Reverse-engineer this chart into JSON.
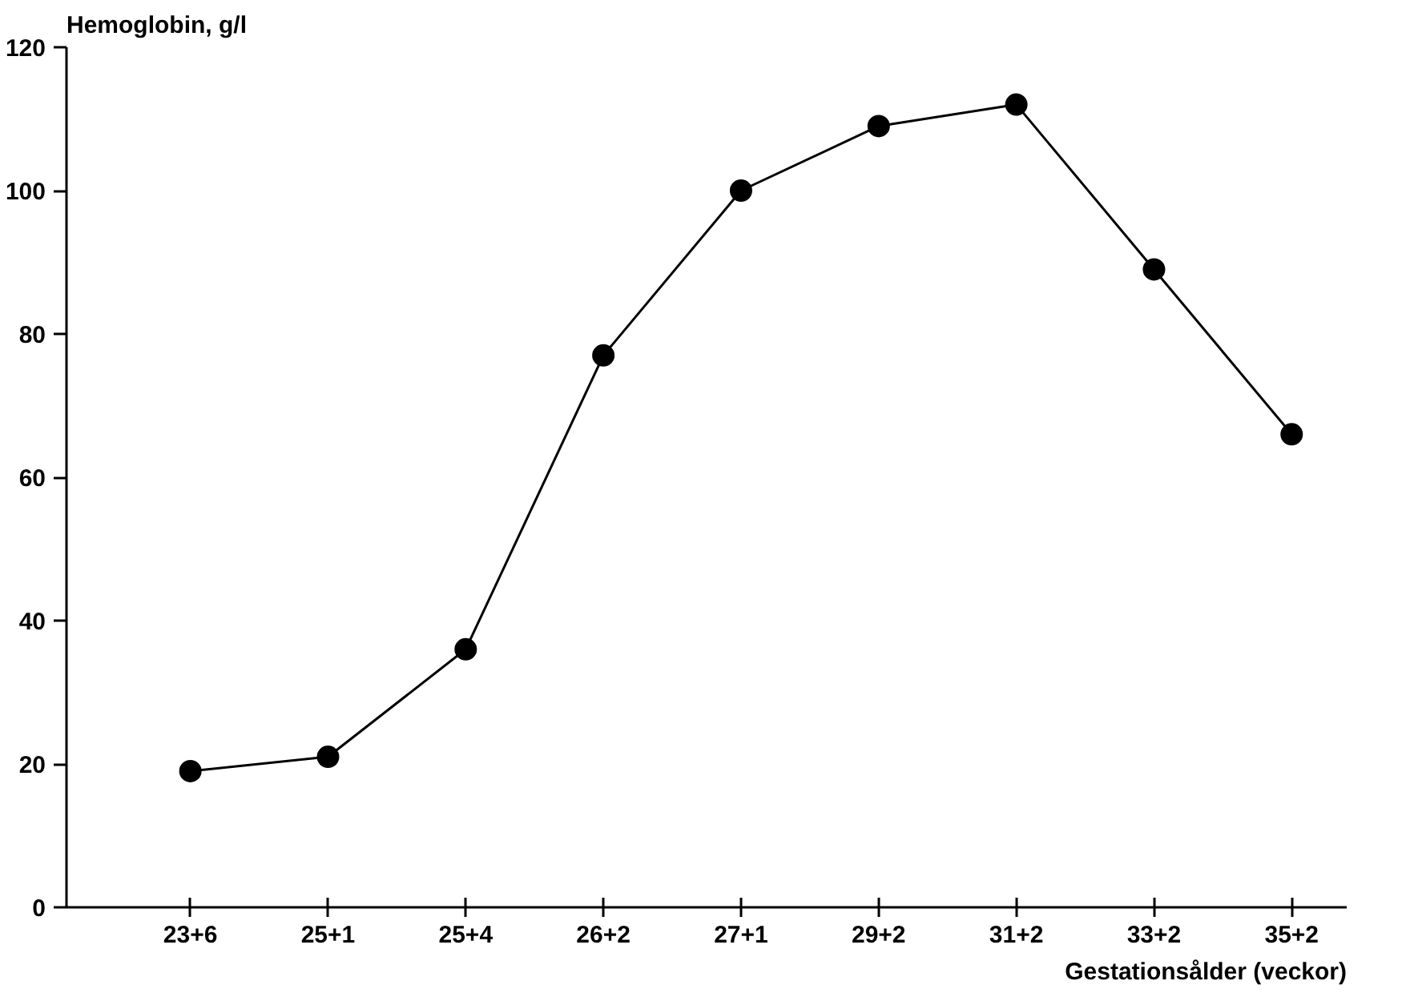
{
  "chart_data": {
    "type": "line",
    "ylabel": "Hemoglobin, g/l",
    "xlabel": "Gestationsålder (veckor)",
    "categories": [
      "23+6",
      "25+1",
      "25+4",
      "26+2",
      "27+1",
      "29+2",
      "31+2",
      "33+2",
      "35+2"
    ],
    "series": [
      {
        "color": "#000000",
        "values": [
          19,
          21,
          36,
          77,
          100,
          109,
          112,
          89,
          66
        ]
      }
    ],
    "ylim": [
      0,
      120
    ],
    "yticks": [
      0,
      20,
      40,
      60,
      80,
      100,
      120
    ],
    "grid": false,
    "marker": "circle",
    "line_style": "solid"
  }
}
